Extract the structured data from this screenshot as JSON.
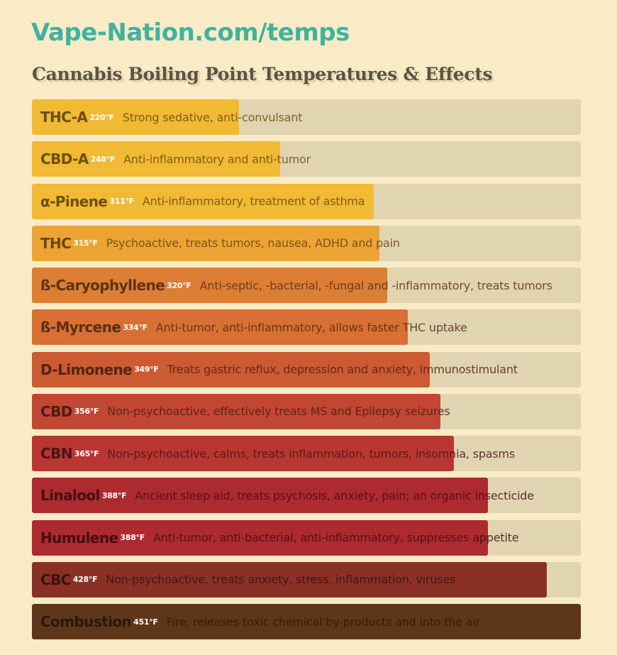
{
  "header": {
    "site": "Vape-Nation.com/temps",
    "title": "Cannabis Boiling Point Temperatures & Effects"
  },
  "chart_data": {
    "type": "bar",
    "orientation": "horizontal",
    "title": "Cannabis Boiling Point Temperatures & Effects",
    "unit": "°F",
    "xlim": [
      0,
      451
    ],
    "items": [
      {
        "name": "THC-A",
        "temp_label": "220°F",
        "value": 220,
        "effect": "Strong sedative, anti-convulsant",
        "color": "#f1b934",
        "text_color": "#6b4f12"
      },
      {
        "name": "CBD-A",
        "temp_label": "248°F",
        "value": 248,
        "effect": "Anti-inflammatory and anti-tumor",
        "color": "#f1b934",
        "text_color": "#6b4f12"
      },
      {
        "name": "α-Pinene",
        "temp_label": "311°F",
        "value": 311,
        "effect": "Anti-inflammatory, treatment of asthma",
        "color": "#f1b934",
        "text_color": "#6b4f12"
      },
      {
        "name": "THC",
        "temp_label": "315°F",
        "value": 315,
        "effect": "Psychoactive, treats tumors, nausea, ADHD and pain",
        "color": "#eba434",
        "text_color": "#6b4513"
      },
      {
        "name": "ß-Caryophyllene",
        "temp_label": "320°F",
        "value": 320,
        "effect": "Anti-septic, -bacterial, -fungal and -inflammatory, treats tumors",
        "color": "#dc7e34",
        "text_color": "#5e3413"
      },
      {
        "name": "ß-Myrcene",
        "temp_label": "334°F",
        "value": 334,
        "effect": "Anti-tumor, anti-inflammatory, allows faster THC uptake",
        "color": "#d86f33",
        "text_color": "#5a2e14"
      },
      {
        "name": "D-Limonene",
        "temp_label": "349°F",
        "value": 349,
        "effect": "Treats gastric reflux, depression and anxiety, immunostimulant",
        "color": "#cc5a32",
        "text_color": "#532412"
      },
      {
        "name": "CBD",
        "temp_label": "356°F",
        "value": 356,
        "effect": "Non-psychoactive, effectively treats MS and Epilepsy seizures",
        "color": "#c24634",
        "text_color": "#4e1d14"
      },
      {
        "name": "CBN",
        "temp_label": "365°F",
        "value": 365,
        "effect": "Non-psychoactive, calms, treats inflammation, tumors, insomnia, spasms",
        "color": "#b93633",
        "text_color": "#4b1514"
      },
      {
        "name": "Linalool",
        "temp_label": "388°F",
        "value": 388,
        "effect": "Ancient sleep aid, treats psychosis, anxiety, pain; an organic insecticide",
        "color": "#ad2a2f",
        "text_color": "#451012"
      },
      {
        "name": "Humulene",
        "temp_label": "388°F",
        "value": 388,
        "effect": "Anti-tumor, anti-bacterial, anti-inflammatory, suppresses appetite",
        "color": "#ad2a2f",
        "text_color": "#451012"
      },
      {
        "name": "CBC",
        "temp_label": "428°F",
        "value": 428,
        "effect": "Non-psychoactive, treats anxiety, stress, inflammation, viruses",
        "color": "#8a3126",
        "text_color": "#3a130e"
      },
      {
        "name": "Combustion",
        "temp_label": "451°F",
        "value": 451,
        "effect": "Fire, releases toxic chemical by-products and into the air",
        "color": "#5e371b",
        "text_color": "#2d1808"
      }
    ]
  }
}
